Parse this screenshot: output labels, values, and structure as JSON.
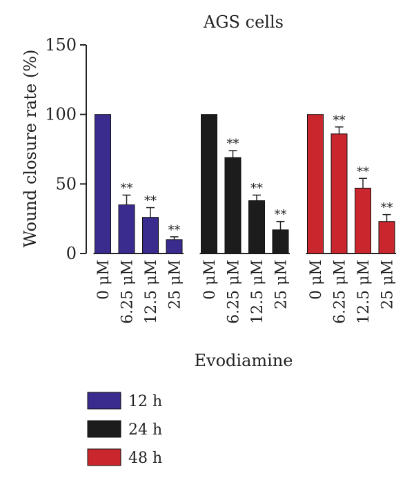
{
  "chart_data": {
    "type": "bar",
    "title": "AGS cells",
    "xlabel": "Evodiamine",
    "ylabel": "Wound closure rate (%)",
    "ylim": [
      0,
      150
    ],
    "yticks": [
      0,
      50,
      100,
      150
    ],
    "categories": [
      "0 μM",
      "6.25 μM",
      "12.5 μM",
      "25 μM"
    ],
    "series": [
      {
        "name": "12 h",
        "color": "#3a2c8e",
        "values": [
          100,
          35,
          26,
          10
        ],
        "errors": [
          0,
          7,
          7,
          2
        ],
        "significance": [
          "",
          "**",
          "**",
          "**"
        ]
      },
      {
        "name": "24 h",
        "color": "#1c1c1c",
        "values": [
          100,
          69,
          38,
          17
        ],
        "errors": [
          0,
          5,
          4,
          6
        ],
        "significance": [
          "",
          "**",
          "**",
          "**"
        ]
      },
      {
        "name": "48 h",
        "color": "#c9262d",
        "values": [
          100,
          86,
          47,
          23
        ],
        "errors": [
          0,
          5,
          7,
          5
        ],
        "significance": [
          "",
          "**",
          "**",
          "**"
        ]
      }
    ],
    "grid": false,
    "legend_position": "bottom-left"
  }
}
